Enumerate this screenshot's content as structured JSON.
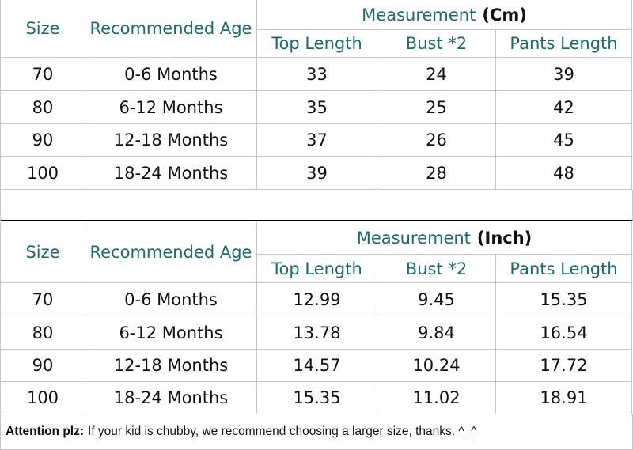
{
  "tables": [
    {
      "header": {
        "size": "Size",
        "age": "Recommended Age",
        "group": "Measurement",
        "unit": "(Cm)",
        "columns": [
          "Top Length",
          "Bust *2",
          "Pants Length"
        ]
      },
      "rows": [
        [
          "70",
          "0-6 Months",
          "33",
          "24",
          "39"
        ],
        [
          "80",
          "6-12 Months",
          "35",
          "25",
          "42"
        ],
        [
          "90",
          "12-18 Months",
          "37",
          "26",
          "45"
        ],
        [
          "100",
          "18-24 Months",
          "39",
          "28",
          "48"
        ]
      ]
    },
    {
      "header": {
        "size": "Size",
        "age": "Recommended Age",
        "group": "Measurement",
        "unit": "(Inch)",
        "columns": [
          "Top Length",
          "Bust *2",
          "Pants Length"
        ]
      },
      "rows": [
        [
          "70",
          "0-6 Months",
          "12.99",
          "9.45",
          "15.35"
        ],
        [
          "80",
          "6-12 Months",
          "13.78",
          "9.84",
          "16.54"
        ],
        [
          "90",
          "12-18 Months",
          "14.57",
          "10.24",
          "17.72"
        ],
        [
          "100",
          "18-24 Months",
          "15.35",
          "11.02",
          "18.91"
        ]
      ]
    }
  ],
  "note": {
    "label": "Attention plz:",
    "text": "If your kid is chubby, we recommend choosing a larger size, thanks. ^_^"
  }
}
